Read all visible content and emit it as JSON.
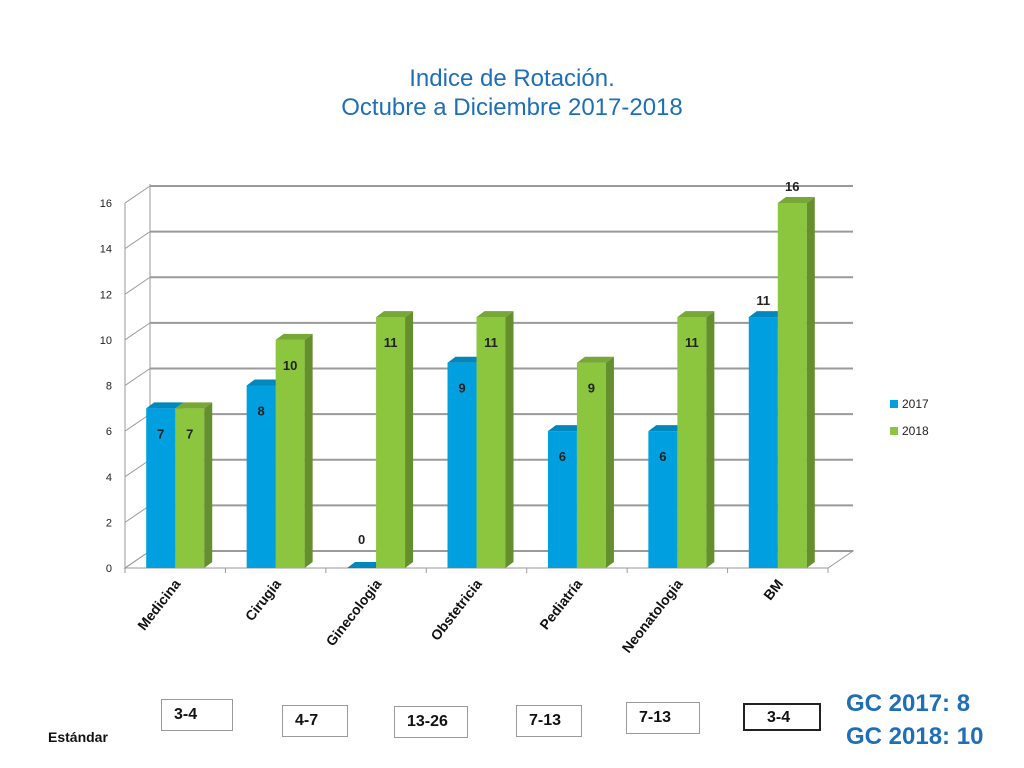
{
  "title_line1": "Indice de Rotación.",
  "title_line2": "Octubre a Diciembre 2017-2018",
  "chart_data": {
    "type": "bar",
    "categories": [
      "Medicina",
      "Cirugia",
      "Ginecologia",
      "Obstetricia",
      "Pediatría",
      "Neonatologia",
      "BM"
    ],
    "series": [
      {
        "name": "2017",
        "values": [
          7,
          8,
          0,
          9,
          6,
          6,
          11
        ],
        "color": "#00a0e0"
      },
      {
        "name": "2018",
        "values": [
          7,
          10,
          11,
          11,
          9,
          11,
          16
        ],
        "color": "#8cc63f"
      }
    ],
    "ylim": [
      0,
      16
    ],
    "yticks": [
      "0",
      "2",
      "4",
      "6",
      "8",
      "10",
      "12",
      "14",
      "16"
    ],
    "grid": true,
    "legend_position": "right",
    "xlabel": "",
    "ylabel": ""
  },
  "standards": {
    "label": "Estándar",
    "values": [
      "3-4",
      "4-7",
      "13-26",
      "7-13",
      "7-13",
      "3-4"
    ]
  },
  "gc": {
    "line1": "GC 2017: 8",
    "line2": "GC 2018: 10"
  }
}
